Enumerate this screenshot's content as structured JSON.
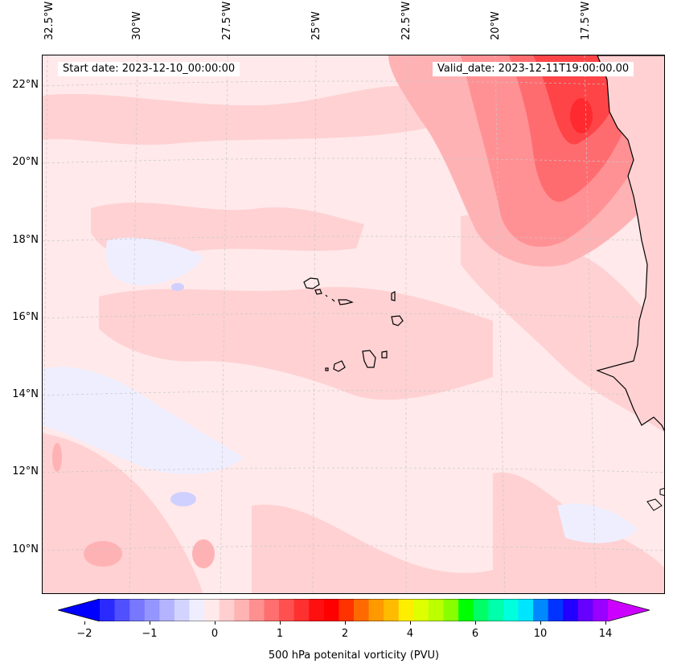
{
  "map": {
    "start_date": "Start date: 2023-12-10_00:00:00",
    "valid_date": "Valid_date: 2023-12-11T19:00:00.00",
    "lon_labels": [
      "32.5°W",
      "30°W",
      "27.5°W",
      "25°W",
      "22.5°W",
      "20°W",
      "17.5°W"
    ],
    "lat_labels": [
      "22°N",
      "20°N",
      "18°N",
      "16°N",
      "14°N",
      "12°N",
      "10°N"
    ],
    "background_color": "#ffe9ea",
    "coastline_color": "#000000"
  },
  "colorbar": {
    "label": "500 hPa potenital vorticity (PVU)",
    "ticks": [
      "−2",
      "−1",
      "0",
      "1",
      "2",
      "4",
      "6",
      "10",
      "14"
    ],
    "colors": [
      "#0000ff",
      "#2a2aff",
      "#5050ff",
      "#7777ff",
      "#9595ff",
      "#b3b3ff",
      "#d3d3ff",
      "#eeeeff",
      "#ffe9ea",
      "#ffcfcf",
      "#ffb3b3",
      "#ff9090",
      "#ff6f6f",
      "#ff5050",
      "#ff3030",
      "#ff1010",
      "#ff0000",
      "#ff3300",
      "#ff6a00",
      "#ff9900",
      "#ffbb00",
      "#ffee00",
      "#ddff00",
      "#bbff00",
      "#88ff00",
      "#00ff00",
      "#00ff66",
      "#00ffaa",
      "#00ffdd",
      "#00e5ff",
      "#0088ff",
      "#0033ff",
      "#2200ff",
      "#6600ff",
      "#9900ff",
      "#cc00ff"
    ]
  }
}
